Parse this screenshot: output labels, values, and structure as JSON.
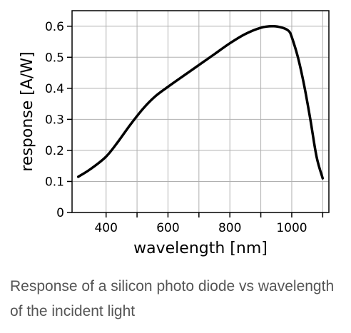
{
  "chart_data": {
    "type": "line",
    "title": "",
    "xlabel": "wavelength [nm]",
    "ylabel": "response [A/W]",
    "xlim": [
      290,
      1120
    ],
    "ylim": [
      0,
      0.65
    ],
    "xticks": [
      400,
      500,
      600,
      700,
      800,
      900,
      1000,
      1100
    ],
    "xtick_labels": [
      "400",
      "",
      "600",
      "",
      "800",
      "",
      "1000",
      ""
    ],
    "yticks": [
      0,
      0.1,
      0.2,
      0.3,
      0.4,
      0.5,
      0.6
    ],
    "ytick_labels": [
      "0",
      "0.1",
      "0.2",
      "0.3",
      "0.4",
      "0.5",
      "0.6"
    ],
    "grid": true,
    "series": [
      {
        "name": "",
        "color": "#000000",
        "x": [
          310,
          350,
          400,
          440,
          480,
          520,
          560,
          600,
          650,
          700,
          750,
          800,
          850,
          900,
          940,
          970,
          990,
          1000,
          1020,
          1040,
          1060,
          1080,
          1100
        ],
        "y": [
          0.115,
          0.14,
          0.18,
          0.23,
          0.285,
          0.335,
          0.375,
          0.405,
          0.44,
          0.475,
          0.51,
          0.545,
          0.575,
          0.595,
          0.6,
          0.595,
          0.585,
          0.565,
          0.5,
          0.41,
          0.3,
          0.18,
          0.11
        ]
      }
    ]
  },
  "caption": "Response of a silicon photo diode vs wavelength of the incident light"
}
